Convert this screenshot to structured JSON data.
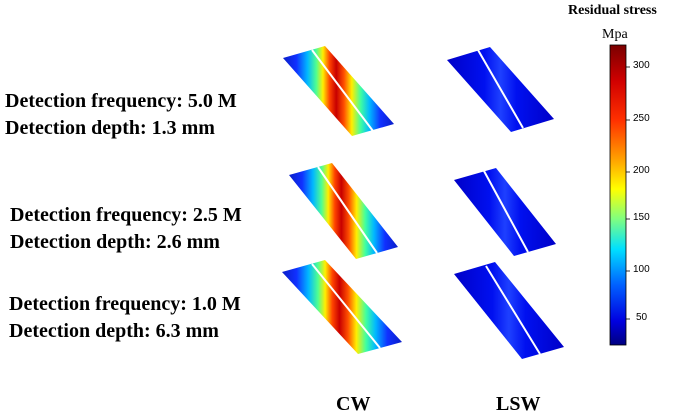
{
  "rows": [
    {
      "frequency": "Detection frequency: 5.0 M",
      "depth": "Detection depth: 1.3 mm"
    },
    {
      "frequency": "Detection frequency: 2.5 M",
      "depth": "Detection depth: 2.6 mm"
    },
    {
      "frequency": "Detection frequency: 1.0 M",
      "depth": "Detection depth: 6.3 mm"
    }
  ],
  "columns": {
    "cw": "CW",
    "lsw": "LSW"
  },
  "colorbar": {
    "title": "Residual stress",
    "unit": "Mpa",
    "ticks": [
      "300",
      "250",
      "200",
      "150",
      "100",
      "50"
    ],
    "colors": {
      "high": "#7a0000",
      "mid_high": "#ff2000",
      "mid": "#ffff00",
      "mid_low": "#20e0ff",
      "low": "#0000c0",
      "bottom": "#000080"
    }
  }
}
